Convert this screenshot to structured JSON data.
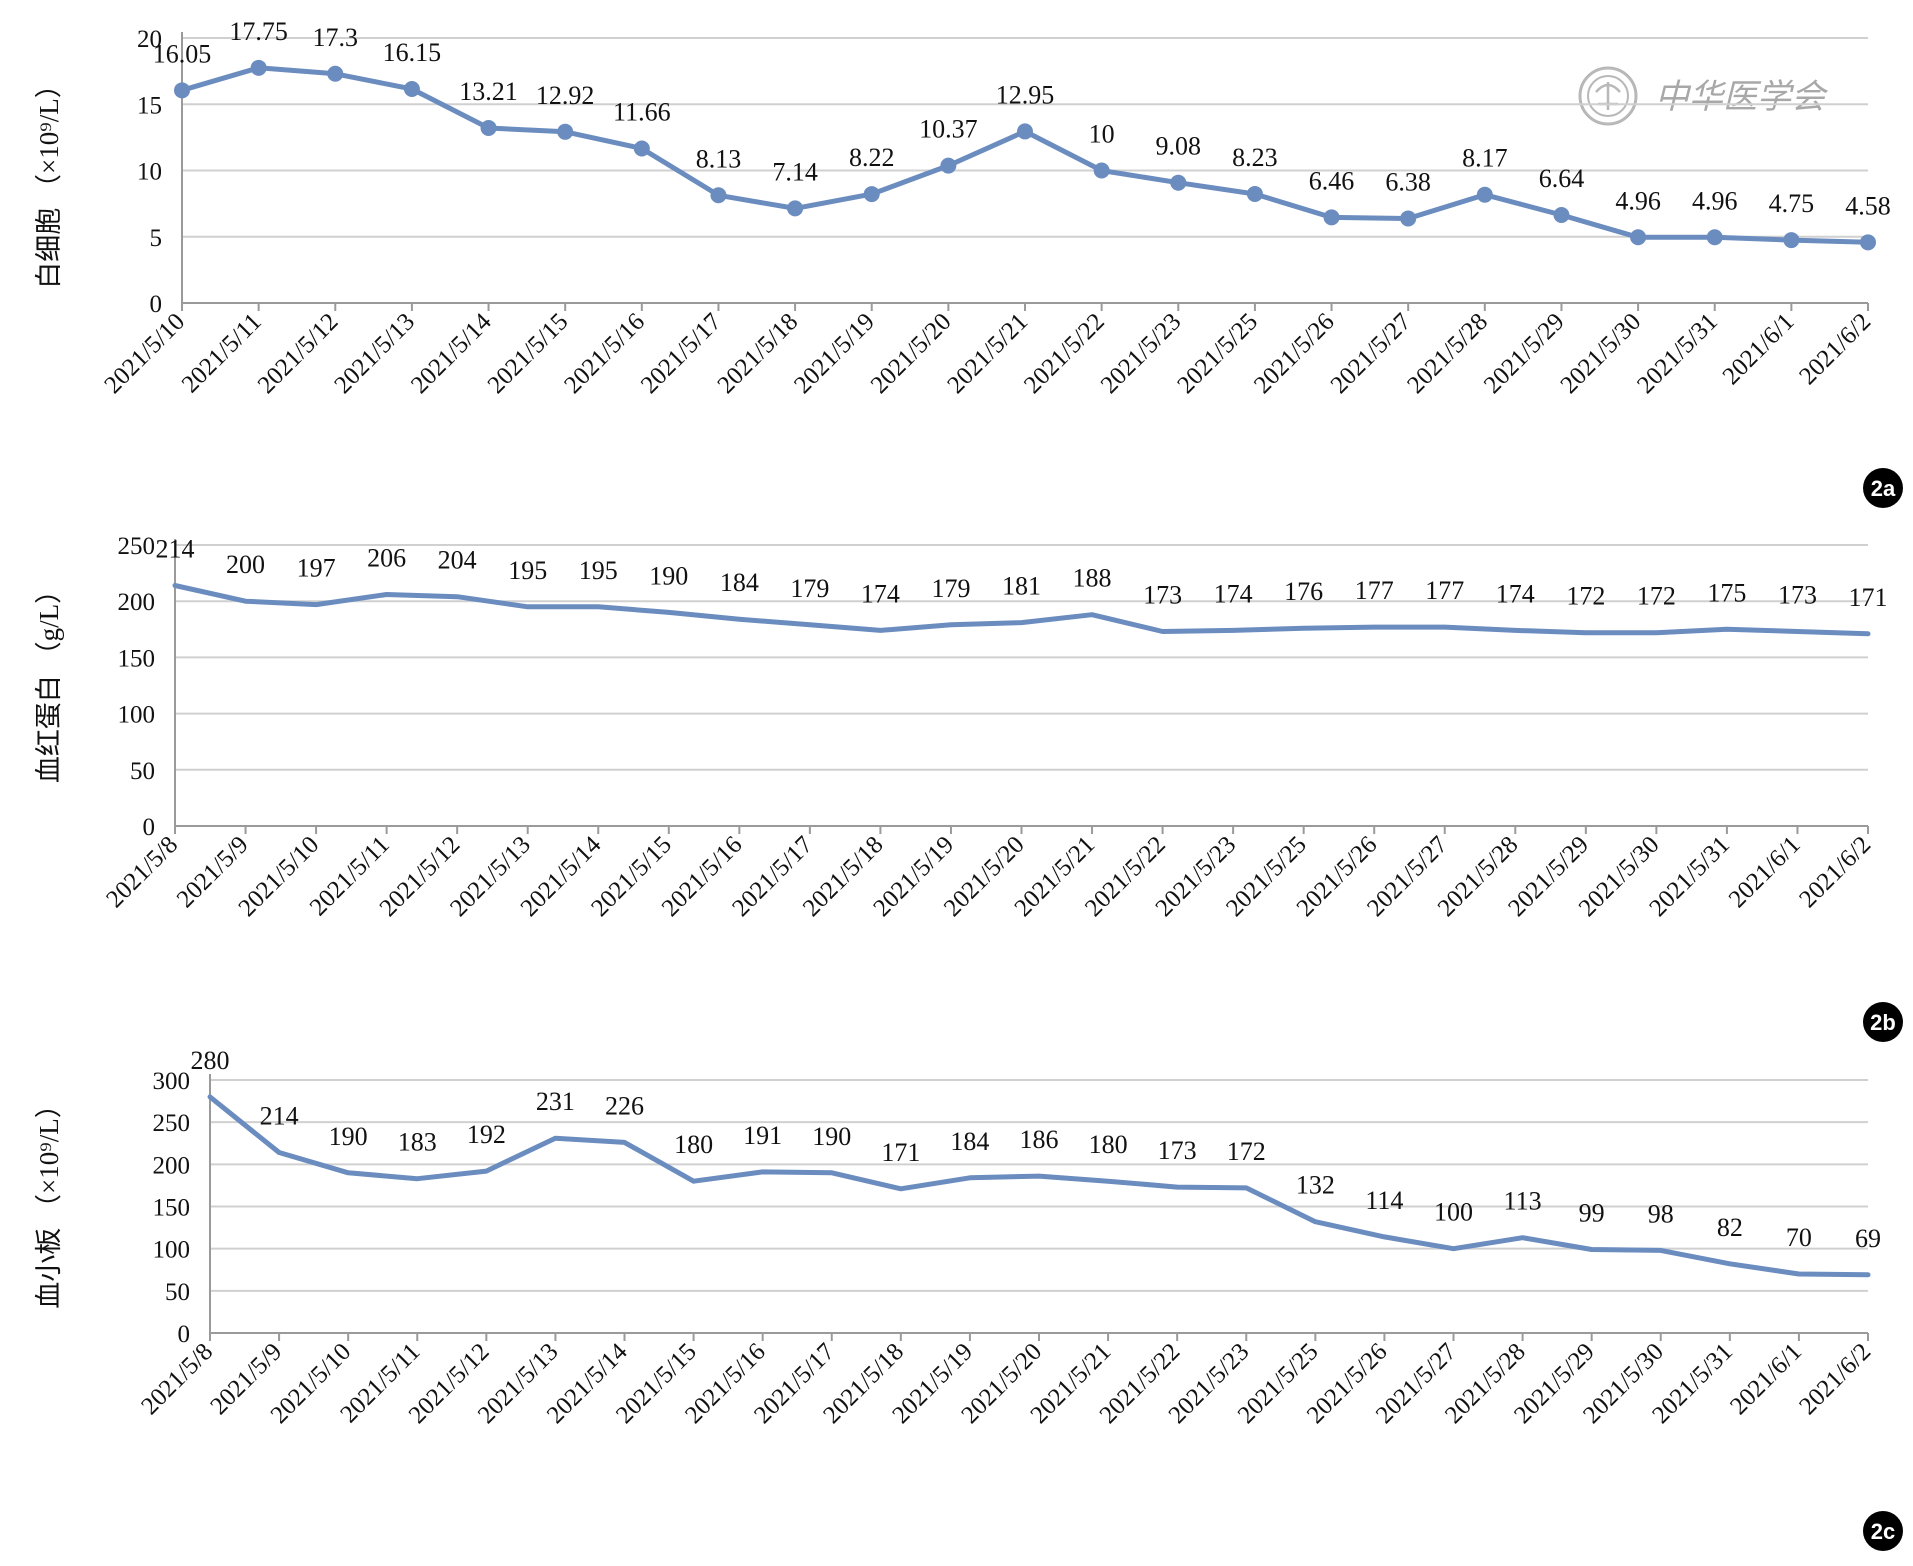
{
  "watermark": {
    "text": "中华医学会",
    "icon": "medical-society-seal-icon"
  },
  "colors": {
    "line": "#6b8cbf",
    "grid": "#d0d0d0",
    "axis": "#9a9a9a",
    "badge": "#000000"
  },
  "chart_data": [
    {
      "id": "2a",
      "type": "line",
      "panel_label": "2a",
      "ylabel": "白细胞 （×10⁹/L）",
      "ylim": [
        0,
        20
      ],
      "yticks": [
        0,
        5,
        10,
        15,
        20
      ],
      "markers": true,
      "grid": true,
      "categories": [
        "2021/5/10",
        "2021/5/11",
        "2021/5/12",
        "2021/5/13",
        "2021/5/14",
        "2021/5/15",
        "2021/5/16",
        "2021/5/17",
        "2021/5/18",
        "2021/5/19",
        "2021/5/20",
        "2021/5/21",
        "2021/5/22",
        "2021/5/23",
        "2021/5/25",
        "2021/5/26",
        "2021/5/27",
        "2021/5/28",
        "2021/5/29",
        "2021/5/30",
        "2021/5/31",
        "2021/6/1",
        "2021/6/2"
      ],
      "values": [
        16.05,
        17.75,
        17.3,
        16.15,
        13.21,
        12.92,
        11.66,
        8.13,
        7.14,
        8.22,
        10.37,
        12.95,
        10,
        9.08,
        8.23,
        6.46,
        6.38,
        8.17,
        6.64,
        4.96,
        4.96,
        4.75,
        4.58
      ],
      "labels": [
        "16.05",
        "17.75",
        "17.3",
        "16.15",
        "13.21",
        "12.92",
        "11.66",
        "8.13",
        "7.14",
        "8.22",
        "10.37",
        "12.95",
        "10",
        "9.08",
        "8.23",
        "6.46",
        "6.38",
        "8.17",
        "6.64",
        "4.96",
        "4.96",
        "4.75",
        "4.58"
      ]
    },
    {
      "id": "2b",
      "type": "line",
      "panel_label": "2b",
      "ylabel": "血红蛋白 （g/L）",
      "ylim": [
        0,
        250
      ],
      "yticks": [
        0,
        50,
        100,
        150,
        200,
        250
      ],
      "markers": false,
      "grid": true,
      "categories": [
        "2021/5/8",
        "2021/5/9",
        "2021/5/10",
        "2021/5/11",
        "2021/5/12",
        "2021/5/13",
        "2021/5/14",
        "2021/5/15",
        "2021/5/16",
        "2021/5/17",
        "2021/5/18",
        "2021/5/19",
        "2021/5/20",
        "2021/5/21",
        "2021/5/22",
        "2021/5/23",
        "2021/5/25",
        "2021/5/26",
        "2021/5/27",
        "2021/5/28",
        "2021/5/29",
        "2021/5/30",
        "2021/5/31",
        "2021/6/1",
        "2021/6/2"
      ],
      "values": [
        214,
        200,
        197,
        206,
        204,
        195,
        195,
        190,
        184,
        179,
        174,
        179,
        181,
        188,
        173,
        174,
        176,
        177,
        177,
        174,
        172,
        172,
        175,
        173,
        171
      ],
      "labels": [
        "214",
        "200",
        "197",
        "206",
        "204",
        "195",
        "195",
        "190",
        "184",
        "179",
        "174",
        "179",
        "181",
        "188",
        "173",
        "174",
        "176",
        "177",
        "177",
        "174",
        "172",
        "172",
        "175",
        "173",
        "171"
      ]
    },
    {
      "id": "2c",
      "type": "line",
      "panel_label": "2c",
      "ylabel": "血小板 （×10⁹/L）",
      "ylim": [
        0,
        300
      ],
      "yticks": [
        0,
        50,
        100,
        150,
        200,
        250,
        300
      ],
      "markers": false,
      "grid": true,
      "categories": [
        "2021/5/8",
        "2021/5/9",
        "2021/5/10",
        "2021/5/11",
        "2021/5/12",
        "2021/5/13",
        "2021/5/14",
        "2021/5/15",
        "2021/5/16",
        "2021/5/17",
        "2021/5/18",
        "2021/5/19",
        "2021/5/20",
        "2021/5/21",
        "2021/5/22",
        "2021/5/23",
        "2021/5/25",
        "2021/5/26",
        "2021/5/27",
        "2021/5/28",
        "2021/5/29",
        "2021/5/30",
        "2021/5/31",
        "2021/6/1",
        "2021/6/2"
      ],
      "values": [
        280,
        214,
        190,
        183,
        192,
        231,
        226,
        180,
        191,
        190,
        171,
        184,
        186,
        180,
        173,
        172,
        132,
        114,
        100,
        113,
        99,
        98,
        82,
        70,
        69
      ],
      "labels": [
        "280",
        "214",
        "190",
        "183",
        "192",
        "231",
        "226",
        "180",
        "191",
        "190",
        "171",
        "184",
        "186",
        "180",
        "173",
        "172",
        "132",
        "114",
        "100",
        "113",
        "99",
        "98",
        "82",
        "70",
        "69"
      ]
    }
  ]
}
